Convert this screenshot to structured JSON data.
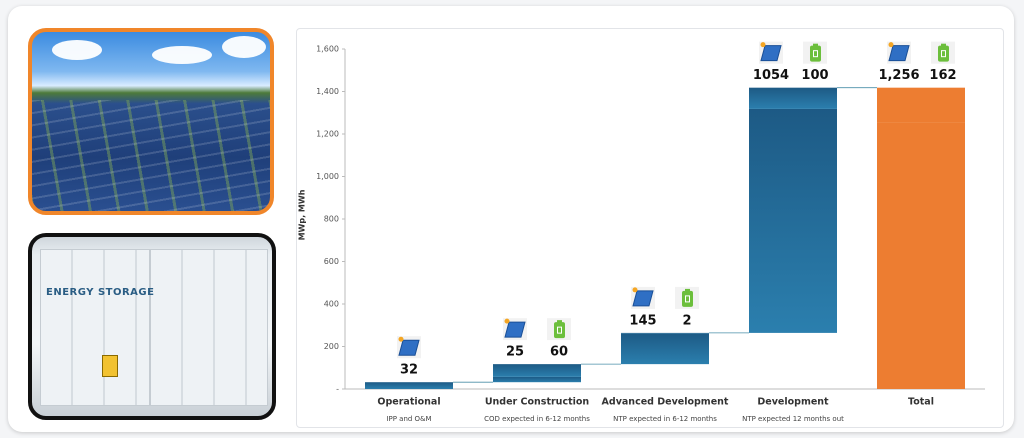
{
  "chart_data": {
    "type": "waterfall",
    "y_label": "MWp, MWh",
    "categories": [
      "Operational",
      "Under Construction",
      "Advanced Development",
      "Development",
      "Total"
    ],
    "sublabels": [
      "IPP and O&M",
      "COD expected in 6-12 months",
      "NTP expected in 6-12 months",
      "NTP expected 12 months out",
      null
    ],
    "series": [
      {
        "color": "#1f5f8b",
        "values": [
          32,
          25,
          145,
          1054,
          1256
        ],
        "value_labels": [
          "32",
          "25",
          "145",
          "1054",
          "1,256"
        ]
      },
      {
        "color": "#1f5f8b",
        "values": [
          null,
          60,
          2,
          100,
          162
        ]
      }
    ],
    "total_color": "#ed7d31",
    "ylim": [
      0,
      1600
    ],
    "yticks": [
      {
        "value": 0,
        "label": "-"
      },
      200,
      400,
      600,
      800,
      {
        "value": 1000,
        "label": "1,000"
      },
      {
        "value": 1200,
        "label": "1,200"
      },
      {
        "value": 1400,
        "label": "1,400"
      },
      {
        "value": 1600,
        "label": "1,600"
      }
    ]
  }
}
